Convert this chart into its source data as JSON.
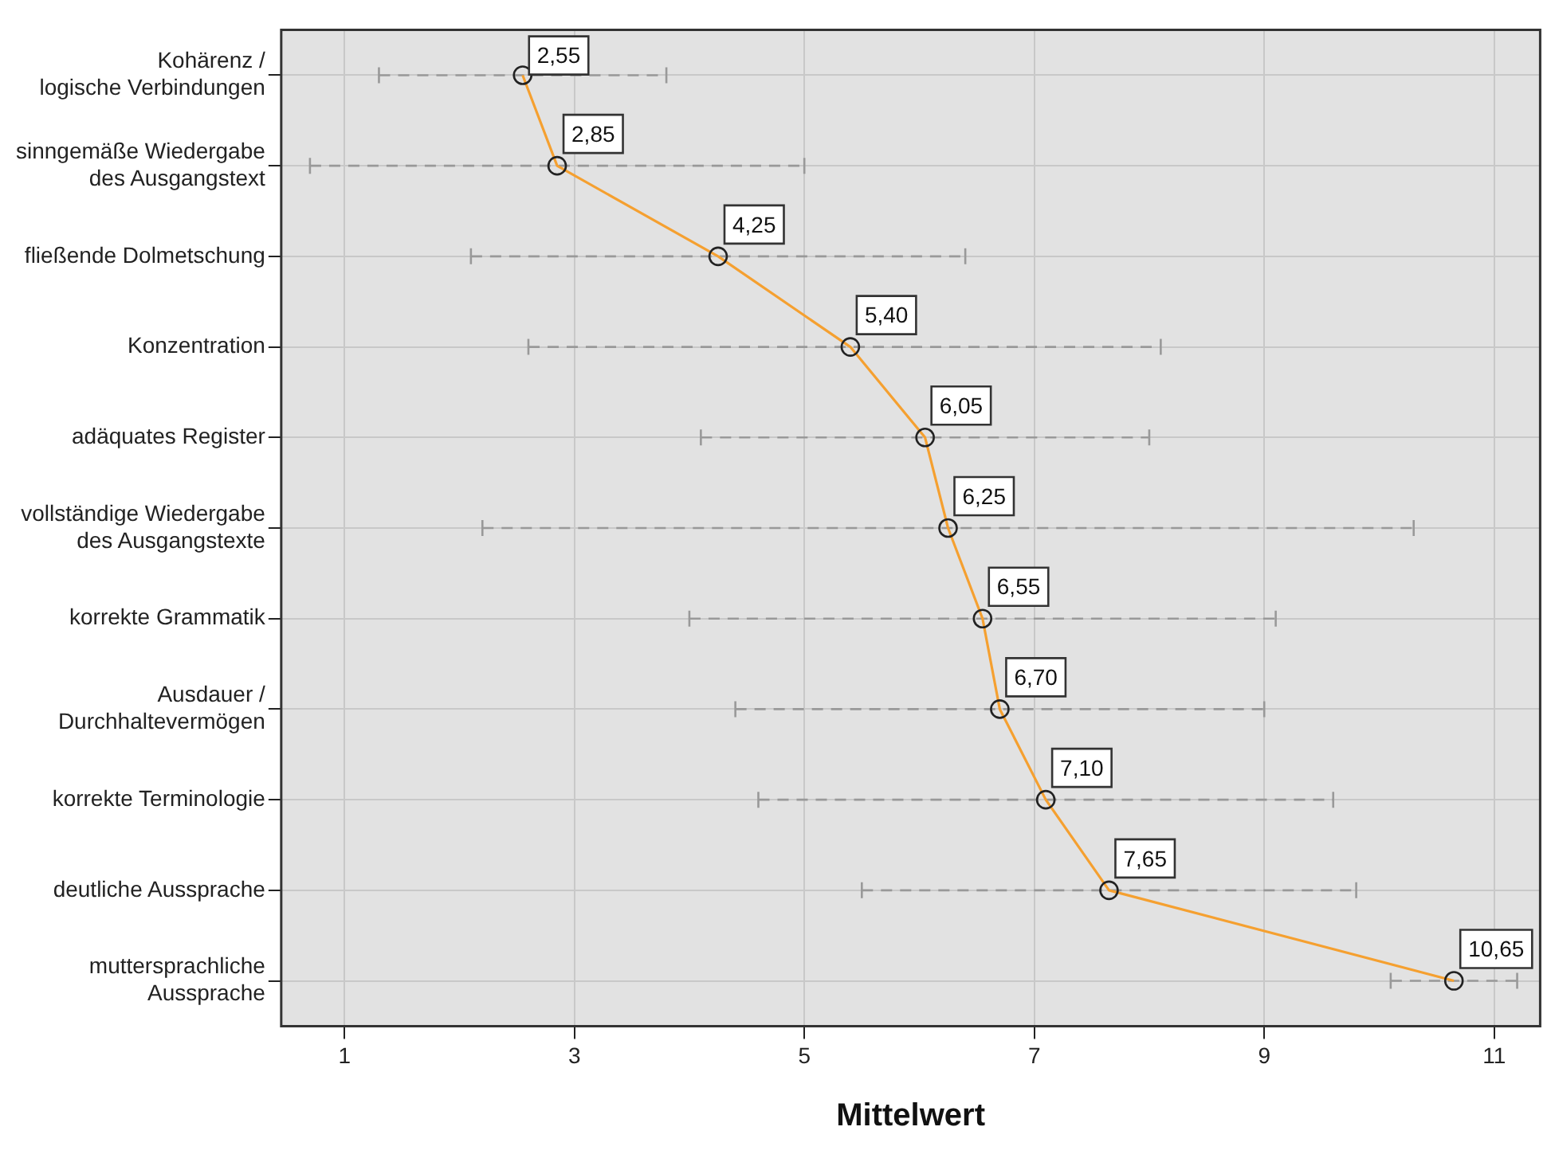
{
  "chart_data": {
    "type": "line",
    "orientation": "horizontal",
    "xlabel": "Mittelwert",
    "categories": [
      "Kohärenz /\nlogische Verbindungen",
      "sinngemäße Wiedergabe\ndes Ausgangstext",
      "fließende Dolmetschung",
      "Konzentration",
      "adäquates Register",
      "vollständige Wiedergabe\ndes Ausgangstexte",
      "korrekte Grammatik",
      "Ausdauer /\nDurchhaltevermögen",
      "korrekte Terminologie",
      "deutliche Aussprache",
      "muttersprachliche\nAussprache"
    ],
    "series": [
      {
        "color": "#f5a030",
        "values": [
          2.55,
          2.85,
          4.25,
          5.4,
          6.05,
          6.25,
          6.55,
          6.7,
          7.1,
          7.65,
          10.65
        ],
        "value_labels": [
          "2,55",
          "2,85",
          "4,25",
          "5,40",
          "6,05",
          "6,25",
          "6,55",
          "6,70",
          "7,10",
          "7,65",
          "10,65"
        ],
        "errors": [
          [
            1.3,
            3.8
          ],
          [
            0.7,
            5.0
          ],
          [
            2.1,
            6.4
          ],
          [
            2.6,
            8.1
          ],
          [
            4.1,
            8.0
          ],
          [
            2.2,
            10.3
          ],
          [
            4.0,
            9.1
          ],
          [
            4.4,
            9.0
          ],
          [
            4.6,
            9.6
          ],
          [
            5.5,
            9.8
          ],
          [
            10.1,
            11.2
          ]
        ]
      }
    ],
    "xlim": [
      0.45,
      11.4
    ],
    "xticks": [
      1,
      3,
      5,
      7,
      9,
      11
    ],
    "grid": true,
    "marker": "circle",
    "line_style": "solid"
  }
}
